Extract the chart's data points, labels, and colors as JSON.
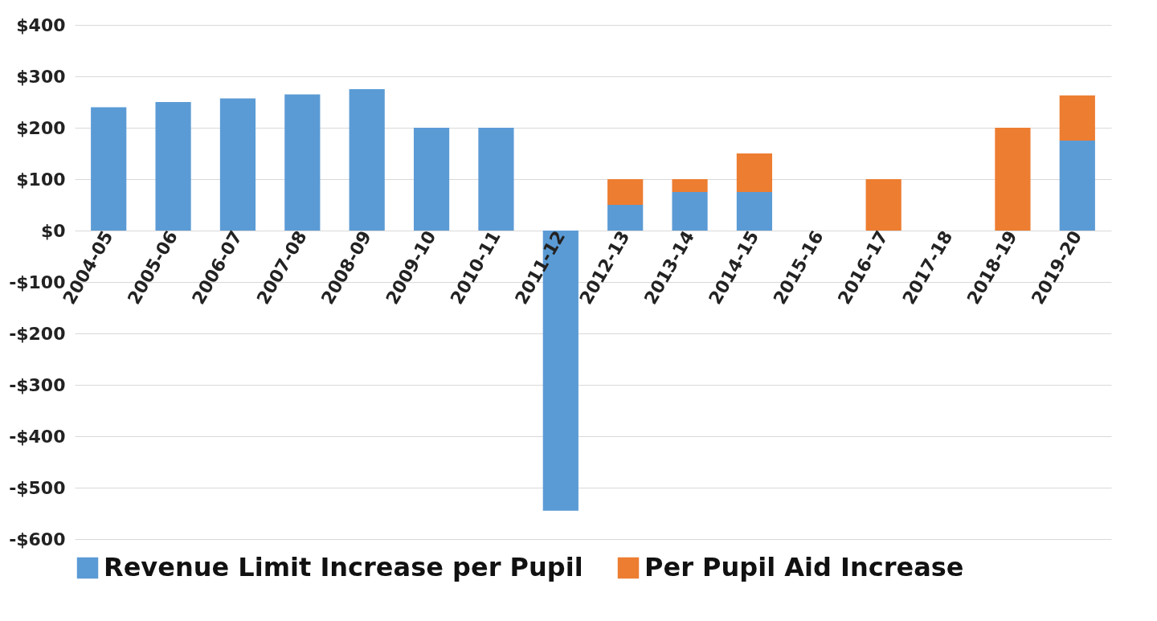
{
  "chart_data": {
    "type": "bar",
    "stacked": true,
    "categories": [
      "2004-05",
      "2005-06",
      "2006-07",
      "2007-08",
      "2008-09",
      "2009-10",
      "2010-11",
      "2011-12",
      "2012-13",
      "2013-14",
      "2014-15",
      "2015-16",
      "2016-17",
      "2017-18",
      "2018-19",
      "2019-20"
    ],
    "series": [
      {
        "name": "Revenue Limit Increase per Pupil",
        "color": "#5b9bd5",
        "values": [
          240,
          250,
          257,
          265,
          275,
          200,
          200,
          -545,
          50,
          75,
          75,
          null,
          null,
          null,
          null,
          175
        ]
      },
      {
        "name": "Per Pupil Aid Increase",
        "color": "#ed7d31",
        "values": [
          null,
          null,
          null,
          null,
          null,
          null,
          null,
          null,
          50,
          25,
          75,
          null,
          100,
          null,
          200,
          88
        ]
      }
    ],
    "ylim": [
      -600,
      400
    ],
    "yticks": [
      {
        "value": -600,
        "label": "-$600"
      },
      {
        "value": -500,
        "label": "-$500"
      },
      {
        "value": -400,
        "label": "-$400"
      },
      {
        "value": -300,
        "label": "-$300"
      },
      {
        "value": -200,
        "label": "-$200"
      },
      {
        "value": -100,
        "label": "-$100"
      },
      {
        "value": 0,
        "label": "$0"
      },
      {
        "value": 100,
        "label": "$100"
      },
      {
        "value": 200,
        "label": "$200"
      },
      {
        "value": 300,
        "label": "$300"
      },
      {
        "value": 400,
        "label": "$400"
      }
    ],
    "grid": "y",
    "legend": "bottom"
  }
}
